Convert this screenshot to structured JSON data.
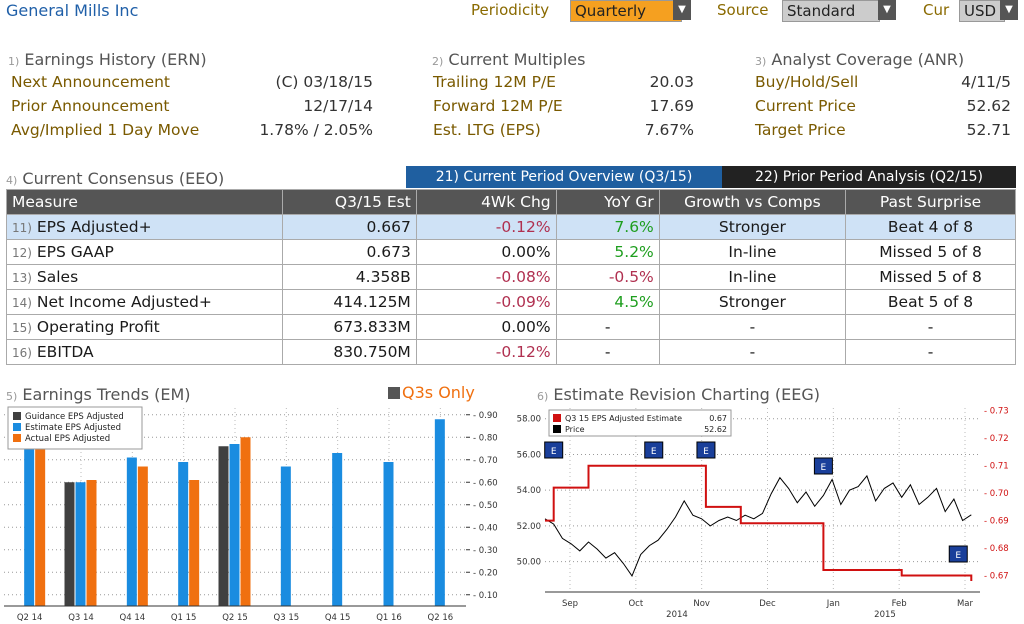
{
  "header": {
    "title": "General Mills Inc",
    "periodicity_label": "Periodicity",
    "periodicity_value": "Quarterly",
    "source_label": "Source",
    "source_value": "Standard",
    "cur_label": "Cur",
    "cur_value": "USD"
  },
  "earnings_history": {
    "num": "1)",
    "title": "Earnings History (ERN)",
    "rows": [
      {
        "label": "Next Announcement",
        "value": "(C)  03/18/15"
      },
      {
        "label": "Prior Announcement",
        "value": "12/17/14"
      },
      {
        "label": "Avg/Implied 1 Day Move",
        "value": "1.78% / 2.05%"
      }
    ]
  },
  "current_multiples": {
    "num": "2)",
    "title": "Current Multiples",
    "rows": [
      {
        "label": "Trailing 12M P/E",
        "value": "20.03"
      },
      {
        "label": "Forward 12M P/E",
        "value": "17.69"
      },
      {
        "label": "Est. LTG (EPS)",
        "value": "7.67%"
      }
    ]
  },
  "analyst_coverage": {
    "num": "3)",
    "title": "Analyst Coverage (ANR)",
    "rows": [
      {
        "label": "Buy/Hold/Sell",
        "value": "4/11/5"
      },
      {
        "label": "Current Price",
        "value": "52.62"
      },
      {
        "label": "Target Price",
        "value": "52.71"
      }
    ]
  },
  "consensus": {
    "num": "4)",
    "title": "Current Consensus (EEO)",
    "tab_active": "21) Current Period Overview (Q3/15)",
    "tab_other": "22) Prior Period Analysis (Q2/15)",
    "columns": [
      "Measure",
      "Q3/15 Est",
      "4Wk Chg",
      "YoY Gr",
      "Growth vs Comps",
      "Past Surprise"
    ],
    "rows": [
      {
        "n": "11)",
        "measure": "EPS Adjusted+",
        "est": "0.667",
        "chg": "-0.12%",
        "yoy": "7.6%",
        "growth": "Stronger",
        "surprise": "Beat 4 of 8"
      },
      {
        "n": "12)",
        "measure": "EPS GAAP",
        "est": "0.673",
        "chg": "0.00%",
        "yoy": "5.2%",
        "growth": "In-line",
        "surprise": "Missed 5 of 8"
      },
      {
        "n": "13)",
        "measure": "Sales",
        "est": "4.358B",
        "chg": "-0.08%",
        "yoy": "-0.5%",
        "growth": "In-line",
        "surprise": "Missed 5 of 8"
      },
      {
        "n": "14)",
        "measure": "Net Income Adjusted+",
        "est": "414.125M",
        "chg": "-0.09%",
        "yoy": "4.5%",
        "growth": "Stronger",
        "surprise": "Beat 5 of 8"
      },
      {
        "n": "15)",
        "measure": "Operating Profit",
        "est": "673.833M",
        "chg": "0.00%",
        "yoy": "-",
        "growth": "-",
        "surprise": "-"
      },
      {
        "n": "16)",
        "measure": "EBITDA",
        "est": "830.750M",
        "chg": "-0.12%",
        "yoy": "-",
        "growth": "-",
        "surprise": "-"
      }
    ]
  },
  "earnings_trends": {
    "num": "5)",
    "title": "Earnings Trends (EM)",
    "q3s_label": "Q3s Only"
  },
  "estimate_revision": {
    "num": "6)",
    "title": "Estimate Revision Charting (EEG)"
  },
  "colors": {
    "guidance": "#404040",
    "estimate": "#1a8ce0",
    "actual": "#f07010",
    "red_line": "#d01010",
    "price_line": "#000000",
    "periodicity_bg": "#f5a020"
  },
  "chart_data": [
    {
      "type": "bar",
      "legend": [
        "Guidance EPS Adjusted",
        "Estimate EPS Adjusted",
        "Actual EPS Adjusted"
      ],
      "categories": [
        "Q2 14",
        "Q3 14",
        "Q4 14",
        "Q1 15",
        "Q2 15",
        "Q3 15",
        "Q4 15",
        "Q1 16",
        "Q2 16"
      ],
      "series": [
        {
          "name": "Guidance EPS Adjusted",
          "values": [
            null,
            0.6,
            null,
            null,
            0.76,
            null,
            null,
            null,
            null
          ]
        },
        {
          "name": "Estimate EPS Adjusted",
          "values": [
            0.83,
            0.6,
            0.71,
            0.69,
            0.77,
            0.67,
            0.73,
            0.69,
            0.88
          ]
        },
        {
          "name": "Actual EPS Adjusted",
          "values": [
            0.84,
            0.61,
            0.67,
            0.61,
            0.8,
            null,
            null,
            null,
            null
          ]
        }
      ],
      "yticks": [
        "0.10",
        "0.20",
        "0.30",
        "0.40",
        "0.50",
        "0.60",
        "0.70",
        "0.80",
        "0.90"
      ],
      "ylim": [
        0.05,
        0.93
      ],
      "grid": true,
      "legend_position": "top-left"
    },
    {
      "type": "line",
      "legend": [
        {
          "name": "Q3 15 EPS Adjusted Estimate",
          "value": "0.67"
        },
        {
          "name": "Price",
          "value": "52.62"
        }
      ],
      "x_labels": [
        "Sep",
        "Oct",
        "Nov",
        "Dec",
        "Jan",
        "Feb",
        "Mar"
      ],
      "year_labels": [
        "2014",
        "2015"
      ],
      "left_ticks": [
        "50.00",
        "52.00",
        "54.00",
        "56.00",
        "58.00"
      ],
      "right_ticks": [
        "0.67",
        "0.68",
        "0.69",
        "0.70",
        "0.71",
        "0.72",
        "0.73"
      ],
      "price_ylim": [
        48.3,
        58.6
      ],
      "est_ylim": [
        0.664,
        0.731
      ],
      "series": [
        {
          "name": "Q3 15 EPS Adjusted Estimate",
          "axis": "right",
          "x": [
            0,
            0.02,
            0.02,
            0.1,
            0.1,
            0.37,
            0.37,
            0.45,
            0.45,
            0.64,
            0.64,
            0.82,
            0.82,
            0.98,
            0.98
          ],
          "y": [
            0.69,
            0.69,
            0.702,
            0.702,
            0.71,
            0.71,
            0.695,
            0.695,
            0.689,
            0.689,
            0.672,
            0.672,
            0.67,
            0.67,
            0.668
          ]
        },
        {
          "name": "Price",
          "axis": "left",
          "x": [
            0,
            0.02,
            0.04,
            0.06,
            0.08,
            0.1,
            0.12,
            0.14,
            0.16,
            0.18,
            0.2,
            0.22,
            0.24,
            0.26,
            0.28,
            0.3,
            0.32,
            0.34,
            0.36,
            0.38,
            0.4,
            0.42,
            0.44,
            0.46,
            0.48,
            0.5,
            0.52,
            0.54,
            0.56,
            0.58,
            0.6,
            0.62,
            0.64,
            0.66,
            0.68,
            0.7,
            0.72,
            0.74,
            0.76,
            0.78,
            0.8,
            0.82,
            0.84,
            0.86,
            0.88,
            0.9,
            0.92,
            0.94,
            0.96,
            0.98
          ],
          "y": [
            52.4,
            52.1,
            51.3,
            51.0,
            50.6,
            51.1,
            50.7,
            50.2,
            50.5,
            49.9,
            49.2,
            50.4,
            50.9,
            51.2,
            51.8,
            52.5,
            53.4,
            52.6,
            52.4,
            52.0,
            52.3,
            52.5,
            52.3,
            52.6,
            52.4,
            52.7,
            53.8,
            54.7,
            54.1,
            53.3,
            53.9,
            53.1,
            53.7,
            54.6,
            53.2,
            54.0,
            54.2,
            54.8,
            53.4,
            54.1,
            54.4,
            53.6,
            54.3,
            53.2,
            53.6,
            54.1,
            52.8,
            53.5,
            52.3,
            52.62
          ]
        }
      ],
      "markers_x": [
        0.02,
        0.25,
        0.37,
        0.64,
        0.95
      ],
      "grid": true,
      "legend_position": "top-left"
    }
  ]
}
